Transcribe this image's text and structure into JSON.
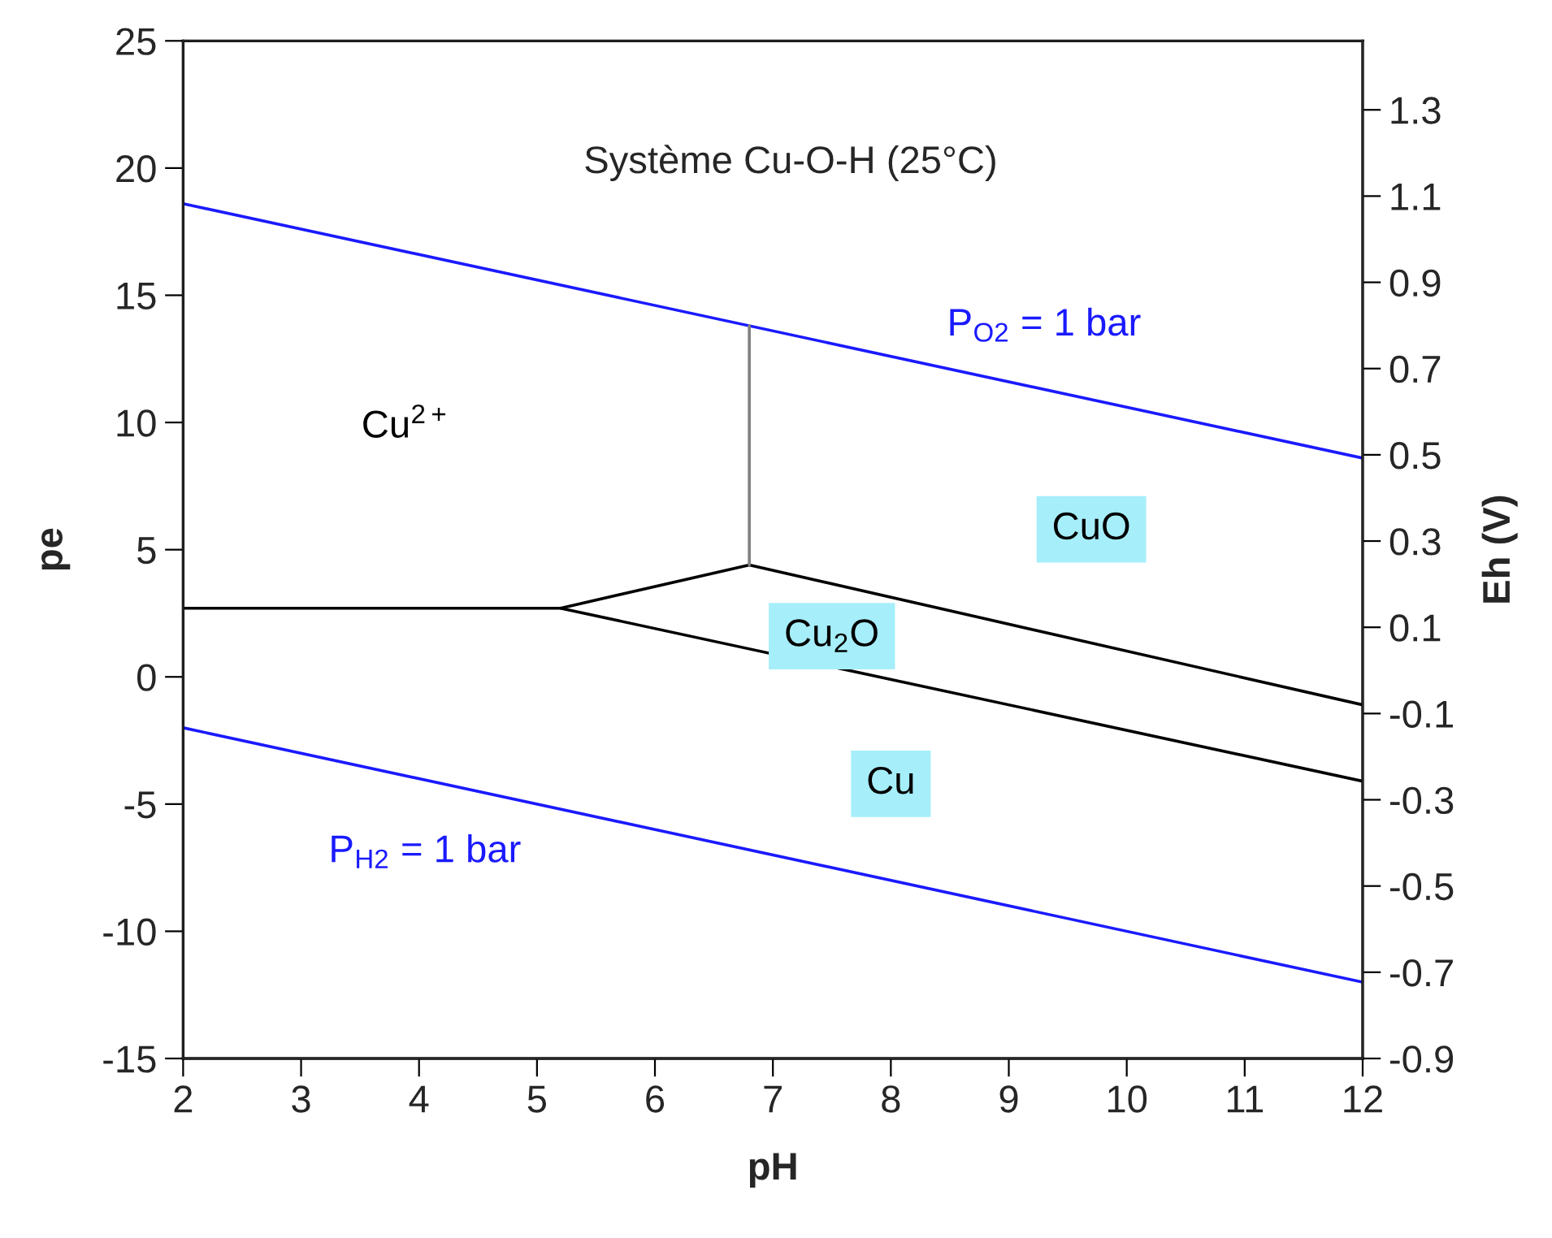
{
  "chart_data": {
    "type": "line",
    "title": "Système Cu-O-H (25°C)",
    "xlabel": "pH",
    "ylabel": "pe",
    "y2label": "Eh (V)",
    "xlim": [
      2,
      12
    ],
    "xticks": [
      2,
      3,
      4,
      5,
      6,
      7,
      8,
      9,
      10,
      11,
      12
    ],
    "ylim": [
      -15,
      25
    ],
    "yticks": [
      -15,
      -10,
      -5,
      0,
      5,
      10,
      15,
      20,
      25
    ],
    "y2lim": [
      -0.9,
      1.46
    ],
    "y2ticks": [
      {
        "value": -0.9,
        "label": "-0.9"
      },
      {
        "value": -0.7,
        "label": "-0.7"
      },
      {
        "value": -0.5,
        "label": "-0.5"
      },
      {
        "value": -0.3,
        "label": "-0.3"
      },
      {
        "value": -0.1,
        "label": "-0.1"
      },
      {
        "value": 0.1,
        "label": "0.1"
      },
      {
        "value": 0.3,
        "label": "0.3"
      },
      {
        "value": 0.5,
        "label": "0.5"
      },
      {
        "value": 0.7,
        "label": "0.7"
      },
      {
        "value": 0.9,
        "label": "0.9"
      },
      {
        "value": 1.1,
        "label": "1.1"
      },
      {
        "value": 1.3,
        "label": "1.3"
      }
    ],
    "grid": false,
    "marker": "none",
    "line_style": "solid",
    "series": [
      {
        "color": "#1a1aff",
        "x": [
          2,
          12
        ],
        "values": [
          18.6,
          8.6
        ]
      },
      {
        "color": "#1a1aff",
        "x": [
          2,
          12
        ],
        "values": [
          -2.0,
          -12.0
        ]
      },
      {
        "color": "#000000",
        "x": [
          2,
          5.2,
          6.8,
          12
        ],
        "values": [
          2.7,
          2.7,
          4.4,
          -1.1
        ]
      },
      {
        "color": "#808080",
        "x": [
          6.8,
          6.8
        ],
        "values": [
          4.4,
          13.8
        ]
      },
      {
        "color": "#000000",
        "x": [
          5.2,
          12
        ],
        "values": [
          2.7,
          -4.1
        ]
      }
    ],
    "annotations": [
      "Cu$^{2+}$",
      "CuO",
      "Cu$_{2}$O",
      "Cu",
      "P$_{O2}$ = 1 bar",
      "P$_{H2}$ = 1 bar"
    ]
  }
}
